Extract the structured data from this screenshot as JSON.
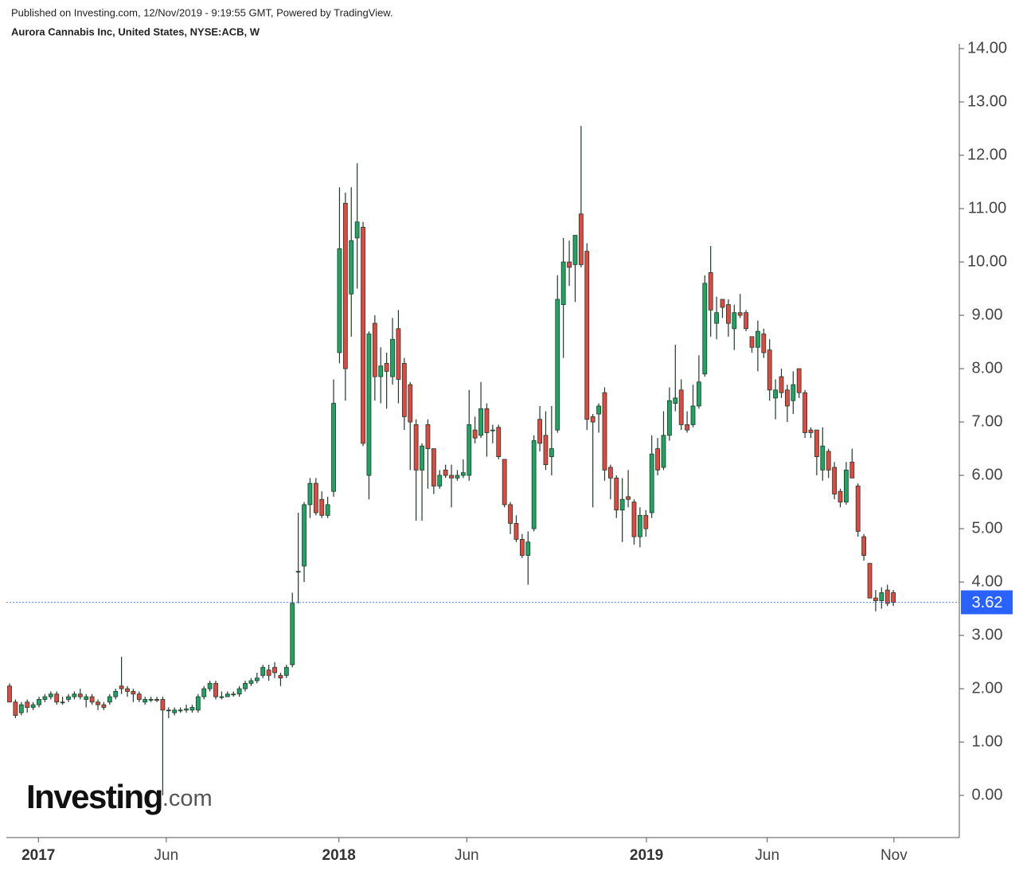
{
  "chart_data": {
    "type": "candlestick",
    "source": "Published on Investing.com, 12/Nov/2019 - 9:19:55 GMT, Powered by TradingView.",
    "title": "Aurora Cannabis Inc, United States, NYSE:ACB, W",
    "watermark": {
      "brand": "Investing",
      "suffix": ".com"
    },
    "up_color": "#1fa463",
    "down_color": "#e2483f",
    "wick_color": "#1e3a2a",
    "open": [
      2.05,
      1.75,
      1.55,
      1.75,
      1.65,
      1.7,
      1.8,
      1.85,
      1.9,
      1.75,
      1.8,
      1.85,
      1.9,
      1.8,
      1.85,
      1.75,
      1.7,
      1.75,
      1.85,
      2.05,
      2.0,
      1.95,
      1.9,
      1.75,
      1.8,
      1.8,
      1.8,
      1.6,
      1.55,
      1.6,
      1.6,
      1.6,
      1.6,
      1.85,
      2.0,
      2.1,
      1.85,
      1.85,
      1.9,
      1.9,
      2.0,
      2.1,
      2.15,
      2.25,
      2.35,
      2.4,
      2.25,
      2.25,
      2.45,
      4.2,
      4.3,
      5.45,
      5.85,
      5.55,
      5.25,
      5.7,
      8.3,
      11.1,
      9.4,
      10.45,
      10.65,
      6.0,
      8.85,
      7.85,
      8.1,
      7.85,
      8.75,
      8.1,
      7.7,
      6.95,
      6.1,
      6.95,
      6.5,
      5.8,
      6.1,
      6.0,
      5.95,
      6.0,
      6.0,
      6.85,
      6.75,
      7.25,
      6.85,
      6.9,
      6.3,
      5.45,
      5.1,
      4.8,
      4.5,
      5.0,
      7.05,
      6.75,
      6.35,
      6.85,
      9.2,
      10.0,
      9.95,
      10.9,
      10.2,
      7.1,
      7.15,
      7.55,
      6.15,
      5.95,
      5.35,
      5.6,
      5.5,
      4.85,
      5.25,
      5.3,
      6.5,
      6.15,
      6.75,
      7.35,
      7.6,
      6.95,
      6.95,
      7.3,
      7.9,
      9.8,
      8.85,
      9.3,
      9.2,
      8.75,
      9.05,
      9.05,
      8.6,
      8.4,
      8.65,
      8.35,
      7.45,
      7.85,
      7.6,
      7.4,
      8.0,
      7.55,
      6.85,
      6.85,
      6.1,
      6.45,
      6.15,
      5.7,
      5.5,
      6.25,
      5.8,
      4.85,
      4.35,
      3.7,
      3.65,
      3.85,
      3.8
    ],
    "high": [
      2.1,
      1.8,
      1.75,
      1.8,
      1.75,
      1.85,
      1.9,
      1.95,
      1.95,
      1.85,
      1.9,
      1.95,
      2.0,
      1.9,
      1.9,
      1.8,
      1.75,
      1.9,
      2.0,
      2.6,
      2.05,
      2.0,
      1.95,
      1.85,
      1.85,
      1.85,
      1.85,
      1.65,
      1.65,
      1.65,
      1.7,
      1.7,
      1.9,
      2.05,
      2.15,
      2.15,
      1.95,
      1.95,
      1.95,
      2.05,
      2.15,
      2.2,
      2.3,
      2.45,
      2.45,
      2.5,
      2.3,
      2.45,
      3.8,
      5.3,
      5.5,
      5.95,
      5.95,
      5.7,
      5.6,
      7.8,
      11.4,
      11.3,
      11.4,
      11.85,
      10.75,
      8.7,
      9.0,
      8.4,
      8.3,
      8.95,
      9.1,
      8.2,
      7.75,
      7.05,
      6.6,
      7.05,
      6.5,
      6.1,
      6.2,
      6.2,
      6.1,
      6.3,
      7.6,
      7.1,
      7.75,
      7.35,
      6.95,
      6.95,
      6.3,
      5.5,
      5.25,
      4.9,
      4.95,
      6.75,
      7.3,
      7.2,
      7.3,
      9.75,
      10.45,
      10.4,
      10.5,
      12.55,
      10.35,
      7.15,
      7.35,
      7.65,
      6.2,
      6.0,
      5.95,
      6.1,
      5.55,
      5.4,
      5.35,
      6.75,
      6.7,
      7.2,
      7.65,
      8.45,
      7.8,
      7.2,
      7.7,
      8.25,
      9.75,
      10.3,
      9.35,
      9.3,
      9.3,
      9.2,
      9.4,
      9.1,
      8.6,
      8.9,
      8.75,
      8.55,
      7.8,
      8.0,
      7.7,
      7.95,
      8.0,
      7.6,
      6.9,
      6.85,
      6.9,
      6.5,
      6.25,
      5.75,
      6.25,
      6.5,
      5.85,
      4.9,
      4.35,
      3.85,
      3.9,
      3.95,
      3.85
    ],
    "low": [
      1.75,
      1.45,
      1.5,
      1.55,
      1.6,
      1.65,
      1.75,
      1.8,
      1.7,
      1.7,
      1.75,
      1.8,
      1.8,
      1.65,
      1.7,
      1.6,
      1.6,
      1.7,
      1.8,
      1.9,
      1.85,
      1.75,
      1.75,
      1.7,
      1.75,
      1.75,
      0.0,
      1.45,
      1.5,
      1.55,
      1.55,
      1.55,
      1.55,
      1.8,
      1.95,
      1.8,
      1.8,
      1.85,
      1.85,
      1.85,
      1.95,
      2.05,
      2.1,
      2.2,
      2.15,
      2.2,
      2.05,
      2.2,
      2.4,
      3.6,
      4.0,
      5.2,
      5.25,
      5.2,
      5.2,
      5.6,
      8.1,
      7.4,
      8.6,
      9.5,
      6.55,
      5.55,
      7.4,
      7.35,
      7.25,
      7.7,
      7.35,
      6.85,
      6.1,
      5.15,
      5.15,
      5.75,
      5.65,
      5.75,
      5.95,
      5.4,
      5.9,
      5.95,
      5.9,
      6.6,
      6.7,
      6.35,
      6.6,
      6.3,
      5.4,
      4.9,
      4.75,
      4.45,
      3.95,
      4.95,
      6.45,
      6.1,
      6.0,
      6.8,
      8.2,
      9.55,
      9.25,
      9.9,
      6.85,
      5.4,
      6.8,
      5.9,
      5.55,
      5.2,
      4.75,
      5.4,
      4.7,
      4.65,
      4.85,
      5.2,
      6.0,
      6.1,
      6.65,
      7.2,
      6.85,
      6.8,
      6.9,
      7.25,
      7.85,
      8.6,
      8.55,
      8.95,
      8.6,
      8.35,
      8.95,
      8.7,
      8.3,
      7.95,
      8.2,
      7.4,
      7.05,
      7.45,
      7.0,
      7.15,
      7.45,
      6.7,
      6.7,
      6.0,
      5.9,
      5.95,
      5.55,
      5.4,
      5.45,
      5.95,
      4.85,
      4.4,
      3.7,
      3.45,
      3.5,
      3.55,
      3.55
    ],
    "close": [
      1.75,
      1.5,
      1.7,
      1.65,
      1.7,
      1.8,
      1.85,
      1.9,
      1.75,
      1.75,
      1.85,
      1.9,
      1.85,
      1.85,
      1.75,
      1.7,
      1.65,
      1.85,
      1.95,
      2.0,
      1.95,
      1.9,
      1.8,
      1.8,
      1.8,
      1.78,
      1.6,
      1.6,
      1.6,
      1.6,
      1.62,
      1.65,
      1.85,
      2.0,
      2.1,
      1.85,
      1.85,
      1.9,
      1.9,
      2.0,
      2.1,
      2.15,
      2.2,
      2.4,
      2.25,
      2.3,
      2.2,
      2.4,
      3.6,
      4.2,
      5.45,
      5.85,
      5.3,
      5.25,
      5.45,
      7.35,
      10.25,
      8.0,
      10.4,
      10.75,
      6.6,
      8.65,
      7.85,
      8.05,
      7.95,
      8.55,
      7.8,
      7.1,
      7.0,
      6.1,
      6.55,
      6.5,
      5.8,
      6.0,
      6.0,
      5.95,
      6.0,
      6.05,
      6.95,
      6.7,
      7.25,
      6.8,
      6.85,
      6.35,
      5.45,
      5.1,
      4.8,
      4.5,
      4.75,
      6.65,
      6.6,
      6.2,
      6.5,
      9.3,
      10.0,
      9.9,
      10.5,
      9.95,
      7.05,
      7.0,
      7.3,
      6.1,
      5.95,
      5.35,
      5.55,
      5.55,
      4.85,
      5.25,
      5.0,
      6.4,
      6.1,
      6.75,
      7.4,
      7.45,
      6.95,
      6.85,
      7.3,
      7.75,
      9.6,
      9.1,
      9.05,
      9.15,
      8.85,
      9.05,
      9.0,
      8.75,
      8.4,
      8.7,
      8.3,
      7.6,
      7.6,
      7.55,
      7.3,
      7.7,
      7.55,
      6.8,
      6.8,
      6.35,
      6.55,
      6.1,
      5.65,
      5.5,
      6.1,
      5.95,
      4.95,
      4.5,
      3.7,
      3.65,
      3.8,
      3.6,
      3.62
    ],
    "last_price": 3.62,
    "last_price_color": "#2962ff",
    "xlim": [
      -0.54,
      161.2
    ],
    "xticks": [
      {
        "value": 4.9,
        "label": "2017"
      },
      {
        "value": 26.6,
        "label": "Jun"
      },
      {
        "value": 55.9,
        "label": "2018"
      },
      {
        "value": 77.6,
        "label": "Jun"
      },
      {
        "value": 108.1,
        "label": "2019"
      },
      {
        "value": 128.6,
        "label": "Jun"
      },
      {
        "value": 150.1,
        "label": "Nov"
      }
    ],
    "ylim": [
      -0.79,
      14.09
    ],
    "yticks": [
      {
        "value": 0,
        "label": "0.00"
      },
      {
        "value": 1,
        "label": "1.00"
      },
      {
        "value": 2,
        "label": "2.00"
      },
      {
        "value": 3,
        "label": "3.00"
      },
      {
        "value": 4,
        "label": "4.00"
      },
      {
        "value": 5,
        "label": "5.00"
      },
      {
        "value": 6,
        "label": "6.00"
      },
      {
        "value": 7,
        "label": "7.00"
      },
      {
        "value": 8,
        "label": "8.00"
      },
      {
        "value": 9,
        "label": "9.00"
      },
      {
        "value": 10,
        "label": "10.00"
      },
      {
        "value": 11,
        "label": "11.00"
      },
      {
        "value": 12,
        "label": "12.00"
      },
      {
        "value": 13,
        "label": "13.00"
      },
      {
        "value": 14,
        "label": "14.00"
      }
    ]
  }
}
